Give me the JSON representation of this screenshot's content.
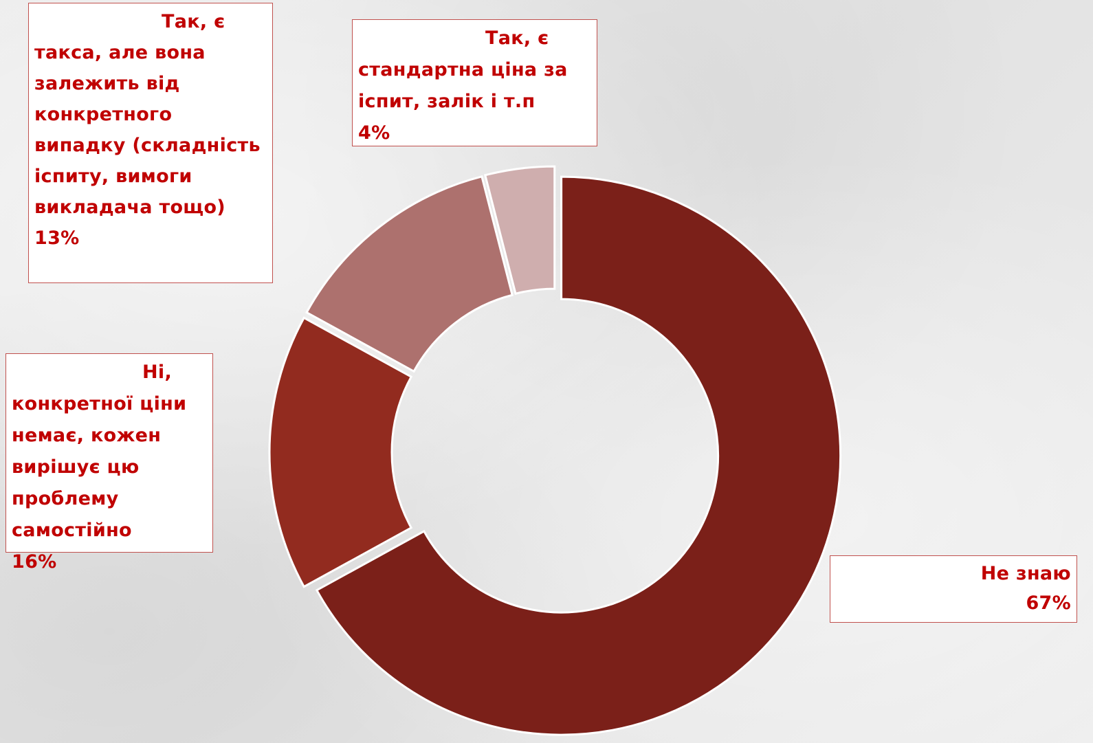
{
  "chart_data": {
    "type": "pie",
    "variant": "donut",
    "title": "",
    "slices": [
      {
        "label": "Не знаю",
        "value": 67,
        "value_label": "67%",
        "color": "#7b2019"
      },
      {
        "label": "Ні, конкретної ціни немає, кожен вирішує цю проблему самостійно",
        "value": 16,
        "value_label": "16%",
        "color": "#922b1f"
      },
      {
        "label": "Так, є такса, але вона залежить від конкретного випадку (складність іспиту, вимоги викладача тощо)",
        "value": 13,
        "value_label": "13%",
        "color": "#ad716e"
      },
      {
        "label": "Так, є стандартна ціна за іспит, залік і т.п",
        "value": 4,
        "value_label": "4%",
        "color": "#cfaeae"
      }
    ],
    "legend": "none",
    "data_labels": "boxed callouts"
  }
}
